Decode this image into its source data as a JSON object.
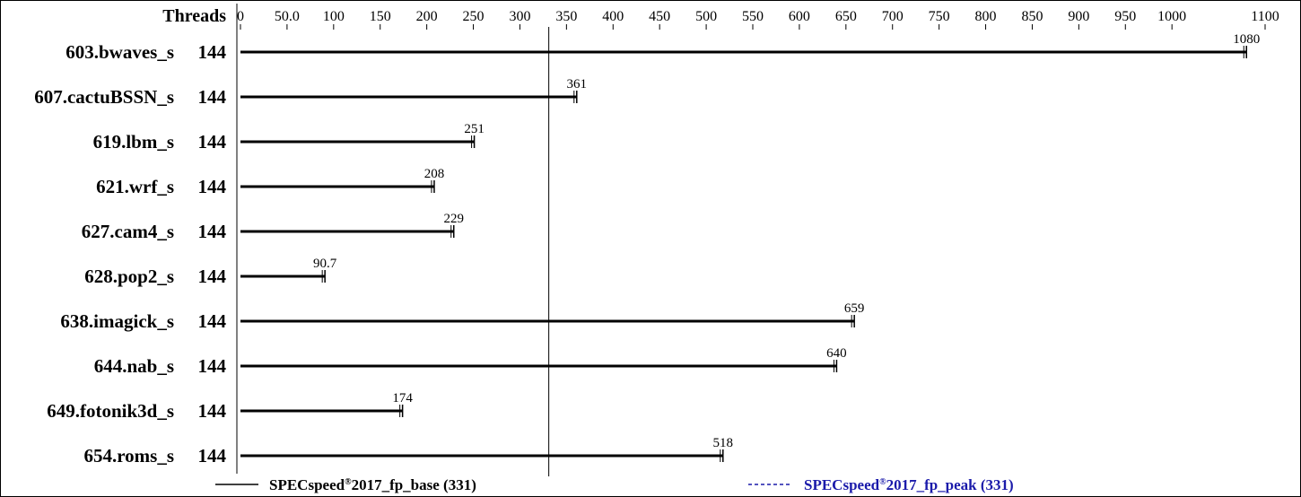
{
  "chart_data": {
    "type": "bar",
    "orientation": "horizontal",
    "threads_header": "Threads",
    "categories": [
      "603.bwaves_s",
      "607.cactuBSSN_s",
      "619.lbm_s",
      "621.wrf_s",
      "627.cam4_s",
      "628.pop2_s",
      "638.imagick_s",
      "644.nab_s",
      "649.fotonik3d_s",
      "654.roms_s"
    ],
    "threads": [
      "144",
      "144",
      "144",
      "144",
      "144",
      "144",
      "144",
      "144",
      "144",
      "144"
    ],
    "series": [
      {
        "name": "SPECspeed®2017_fp_base (331)",
        "values": [
          1080,
          361,
          251,
          208,
          229,
          90.7,
          659,
          640,
          174,
          518
        ],
        "value_labels": [
          "1080",
          "361",
          "251",
          "208",
          "229",
          "90.7",
          "659",
          "640",
          "174",
          "518"
        ]
      }
    ],
    "xlim": [
      0,
      1100
    ],
    "xticks": [
      0,
      50,
      100,
      150,
      200,
      250,
      300,
      350,
      400,
      450,
      500,
      550,
      600,
      650,
      700,
      750,
      800,
      850,
      900,
      950,
      1000,
      1100
    ],
    "xtick_labels": [
      "0",
      "50.0",
      "100",
      "150",
      "200",
      "250",
      "300",
      "350",
      "400",
      "450",
      "500",
      "550",
      "600",
      "650",
      "700",
      "750",
      "800",
      "850",
      "900",
      "950",
      "1000",
      "1100"
    ],
    "reference_line": {
      "value": 331
    },
    "legend": {
      "placement": "bottom",
      "base": {
        "prefix": "SPECspeed",
        "mark": "®",
        "suffix": "2017_fp_base (331)",
        "color": "#000000"
      },
      "peak": {
        "prefix": "SPECspeed",
        "mark": "®",
        "suffix": "2017_fp_peak (331)",
        "color": "#1a1aaa"
      }
    },
    "colors": {
      "bar": "#000000",
      "peak": "#1a1aaa"
    }
  }
}
